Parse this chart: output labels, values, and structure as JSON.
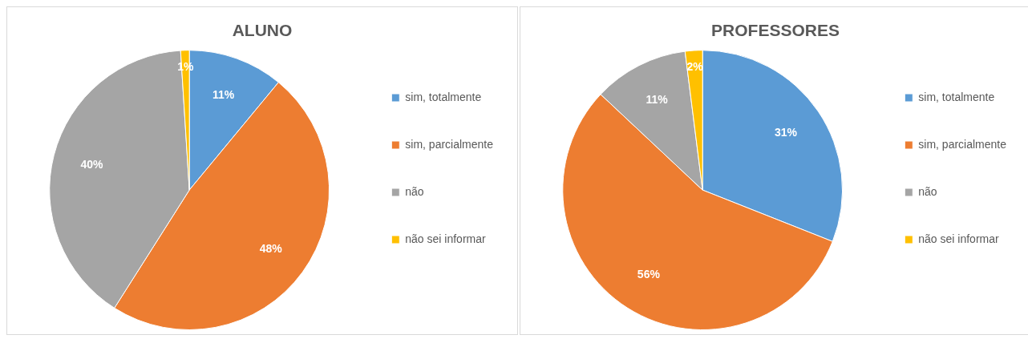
{
  "chart_data": [
    {
      "type": "pie",
      "title": "ALUNO",
      "categories": [
        "sim, totalmente",
        "sim, parcialmente",
        "não",
        "não sei informar"
      ],
      "values": [
        11,
        48,
        40,
        1
      ],
      "value_labels": [
        "11%",
        "48%",
        "40%",
        "1%"
      ],
      "colors": [
        "#5b9bd5",
        "#ed7d31",
        "#a5a5a5",
        "#ffc000"
      ],
      "legend": "right"
    },
    {
      "type": "pie",
      "title": "PROFESSORES",
      "categories": [
        "sim, totalmente",
        "sim, parcialmente",
        "não",
        "não sei informar"
      ],
      "values": [
        31,
        56,
        11,
        2
      ],
      "value_labels": [
        "31%",
        "56%",
        "11%",
        "2%"
      ],
      "colors": [
        "#5b9bd5",
        "#ed7d31",
        "#a5a5a5",
        "#ffc000"
      ],
      "legend": "right"
    }
  ]
}
